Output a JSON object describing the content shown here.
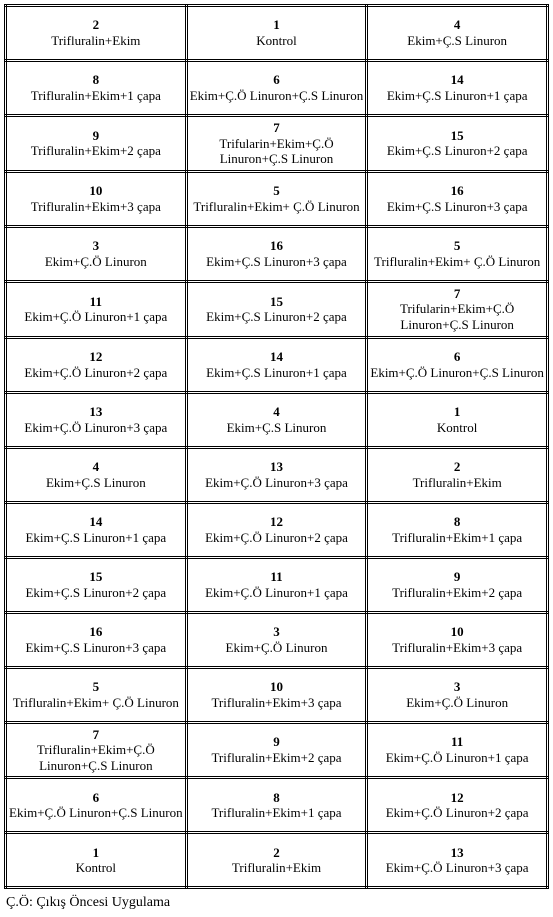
{
  "rows": [
    [
      {
        "n": "2",
        "t": "Trifluralin+Ekim"
      },
      {
        "n": "1",
        "t": "Kontrol"
      },
      {
        "n": "4",
        "t": "Ekim+Ç.S Linuron"
      }
    ],
    [
      {
        "n": "8",
        "t": "Trifluralin+Ekim+1 çapa"
      },
      {
        "n": "6",
        "t": "Ekim+Ç.Ö Linuron+Ç.S Linuron"
      },
      {
        "n": "14",
        "t": "Ekim+Ç.S Linuron+1 çapa"
      }
    ],
    [
      {
        "n": "9",
        "t": "Trifluralin+Ekim+2 çapa"
      },
      {
        "n": "7",
        "t": "Trifularin+Ekim+Ç.Ö Linuron+Ç.S Linuron"
      },
      {
        "n": "15",
        "t": "Ekim+Ç.S Linuron+2 çapa"
      }
    ],
    [
      {
        "n": "10",
        "t": "Trifluralin+Ekim+3 çapa"
      },
      {
        "n": "5",
        "t": "Trifluralin+Ekim+ Ç.Ö Linuron"
      },
      {
        "n": "16",
        "t": "Ekim+Ç.S Linuron+3 çapa"
      }
    ],
    [
      {
        "n": "3",
        "t": "Ekim+Ç.Ö Linuron"
      },
      {
        "n": "16",
        "t": "Ekim+Ç.S Linuron+3 çapa"
      },
      {
        "n": "5",
        "t": "Trifluralin+Ekim+ Ç.Ö Linuron"
      }
    ],
    [
      {
        "n": "11",
        "t": "Ekim+Ç.Ö Linuron+1 çapa"
      },
      {
        "n": "15",
        "t": "Ekim+Ç.S Linuron+2 çapa"
      },
      {
        "n": "7",
        "t": "Trifularin+Ekim+Ç.Ö Linuron+Ç.S Linuron"
      }
    ],
    [
      {
        "n": "12",
        "t": "Ekim+Ç.Ö Linuron+2 çapa"
      },
      {
        "n": "14",
        "t": "Ekim+Ç.S Linuron+1 çapa"
      },
      {
        "n": "6",
        "t": "Ekim+Ç.Ö Linuron+Ç.S Linuron"
      }
    ],
    [
      {
        "n": "13",
        "t": "Ekim+Ç.Ö Linuron+3 çapa"
      },
      {
        "n": "4",
        "t": "Ekim+Ç.S Linuron"
      },
      {
        "n": "1",
        "t": "Kontrol"
      }
    ],
    [
      {
        "n": "4",
        "t": "Ekim+Ç.S Linuron"
      },
      {
        "n": "13",
        "t": "Ekim+Ç.Ö Linuron+3 çapa"
      },
      {
        "n": "2",
        "t": "Trifluralin+Ekim"
      }
    ],
    [
      {
        "n": "14",
        "t": "Ekim+Ç.S Linuron+1 çapa"
      },
      {
        "n": "12",
        "t": "Ekim+Ç.Ö Linuron+2 çapa"
      },
      {
        "n": "8",
        "t": "Trifluralin+Ekim+1 çapa"
      }
    ],
    [
      {
        "n": "15",
        "t": "Ekim+Ç.S Linuron+2 çapa"
      },
      {
        "n": "11",
        "t": "Ekim+Ç.Ö Linuron+1 çapa"
      },
      {
        "n": "9",
        "t": "Trifluralin+Ekim+2 çapa"
      }
    ],
    [
      {
        "n": "16",
        "t": "Ekim+Ç.S Linuron+3 çapa"
      },
      {
        "n": "3",
        "t": "Ekim+Ç.Ö Linuron"
      },
      {
        "n": "10",
        "t": "Trifluralin+Ekim+3 çapa"
      }
    ],
    [
      {
        "n": "5",
        "t": "Trifluralin+Ekim+ Ç.Ö Linuron"
      },
      {
        "n": "10",
        "t": "Trifluralin+Ekim+3 çapa"
      },
      {
        "n": "3",
        "t": "Ekim+Ç.Ö Linuron"
      }
    ],
    [
      {
        "n": "7",
        "t": "Trifluralin+Ekim+Ç.Ö Linuron+Ç.S Linuron"
      },
      {
        "n": "9",
        "t": "Trifluralin+Ekim+2 çapa"
      },
      {
        "n": "11",
        "t": "Ekim+Ç.Ö Linuron+1 çapa"
      }
    ],
    [
      {
        "n": "6",
        "t": "Ekim+Ç.Ö Linuron+Ç.S Linuron"
      },
      {
        "n": "8",
        "t": "Trifluralin+Ekim+1 çapa"
      },
      {
        "n": "12",
        "t": "Ekim+Ç.Ö Linuron+2 çapa"
      }
    ],
    [
      {
        "n": "1",
        "t": "Kontrol"
      },
      {
        "n": "2",
        "t": "Trifluralin+Ekim"
      },
      {
        "n": "13",
        "t": "Ekim+Ç.Ö Linuron+3 çapa"
      }
    ]
  ],
  "footnote": "Ç.Ö: Çıkış Öncesi Uygulama"
}
